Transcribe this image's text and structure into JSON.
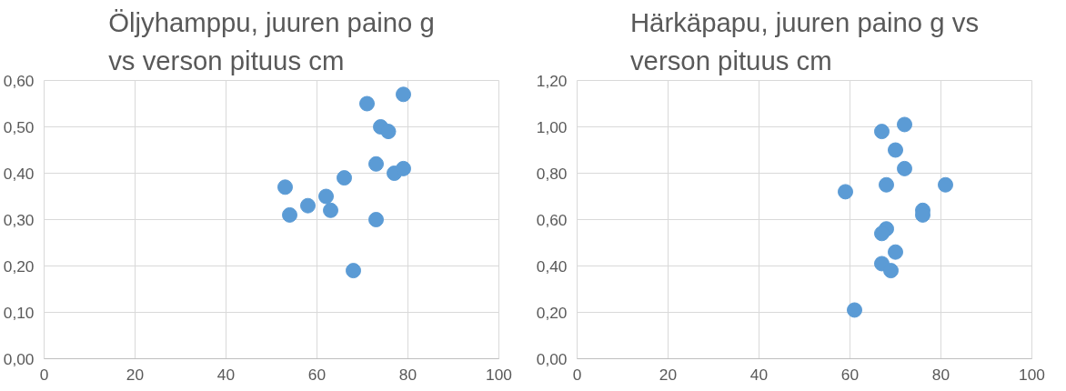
{
  "chart_data": [
    {
      "type": "scatter",
      "title": "Öljyhamppu, juuren paino g\nvs verson pituus cm",
      "marker": "circle",
      "grid": true,
      "series": [
        {
          "color": "#5b9bd5",
          "x": [
            53,
            54,
            58,
            62,
            63,
            66,
            68,
            71,
            73,
            73,
            74,
            75.7,
            77,
            79,
            79
          ],
          "values": [
            0.37,
            0.31,
            0.33,
            0.35,
            0.32,
            0.39,
            0.19,
            0.55,
            0.42,
            0.3,
            0.5,
            0.49,
            0.4,
            0.41,
            0.57
          ]
        }
      ],
      "xlim": [
        0,
        100
      ],
      "xticks": [
        0,
        20,
        40,
        60,
        80,
        100
      ],
      "ylim": [
        0,
        0.6
      ],
      "yticks": [
        {
          "value": 0,
          "label": "0,00"
        },
        {
          "value": 0.1,
          "label": "0,10"
        },
        {
          "value": 0.2,
          "label": "0,20"
        },
        {
          "value": 0.3,
          "label": "0,30"
        },
        {
          "value": 0.4,
          "label": "0,40"
        },
        {
          "value": 0.5,
          "label": "0,50"
        },
        {
          "value": 0.6,
          "label": "0,60"
        }
      ]
    },
    {
      "type": "scatter",
      "title": "Härkäpapu, juuren paino g vs\nverson pituus cm",
      "marker": "circle",
      "grid": true,
      "series": [
        {
          "color": "#5b9bd5",
          "x": [
            59,
            61,
            67,
            72,
            70,
            72,
            68,
            81,
            76,
            76,
            68,
            67,
            70,
            67,
            69
          ],
          "values": [
            0.72,
            0.21,
            0.98,
            1.01,
            0.9,
            0.82,
            0.75,
            0.75,
            0.64,
            0.62,
            0.56,
            0.54,
            0.46,
            0.41,
            0.38
          ]
        }
      ],
      "xlim": [
        0,
        100
      ],
      "xticks": [
        0,
        20,
        40,
        60,
        80,
        100
      ],
      "ylim": [
        0,
        1.2
      ],
      "yticks": [
        {
          "value": 0,
          "label": "0,00"
        },
        {
          "value": 0.2,
          "label": "0,20"
        },
        {
          "value": 0.4,
          "label": "0,40"
        },
        {
          "value": 0.6,
          "label": "0,60"
        },
        {
          "value": 0.8,
          "label": "0,80"
        },
        {
          "value": 1.0,
          "label": "1,00"
        },
        {
          "value": 1.2,
          "label": "1,20"
        }
      ]
    }
  ]
}
